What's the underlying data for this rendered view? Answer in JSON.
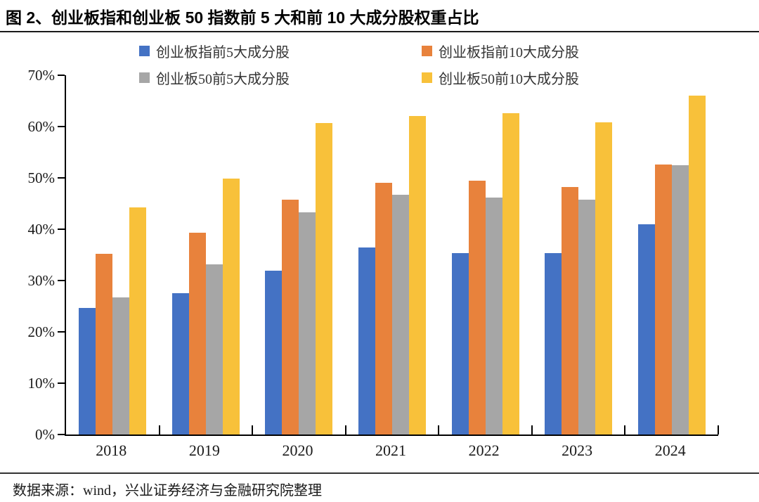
{
  "header": {
    "title": "图 2、创业板指和创业板 50 指数前 5 大和前 10 大成分股权重占比"
  },
  "footer": {
    "source": "数据来源：wind，兴业证券经济与金融研究院整理"
  },
  "chart_data": {
    "type": "bar",
    "title": "图 2、创业板指和创业板 50 指数前 5 大和前 10 大成分股权重占比",
    "categories": [
      "2018",
      "2019",
      "2020",
      "2021",
      "2022",
      "2023",
      "2024"
    ],
    "series": [
      {
        "name": "创业板指前5大成分股",
        "color": "#4472C4",
        "values": [
          24.7,
          27.6,
          31.9,
          36.4,
          35.4,
          35.4,
          40.9
        ]
      },
      {
        "name": "创业板指前10大成分股",
        "color": "#E8823C",
        "values": [
          35.2,
          39.3,
          45.7,
          49.1,
          49.5,
          48.2,
          52.6
        ]
      },
      {
        "name": "创业板50前5大成分股",
        "color": "#A6A6A6",
        "values": [
          26.7,
          33.2,
          43.3,
          46.7,
          46.1,
          45.8,
          52.4
        ]
      },
      {
        "name": "创业板50前10大成分股",
        "color": "#F8C13A",
        "values": [
          44.3,
          49.8,
          60.7,
          62.1,
          62.6,
          60.8,
          66.0
        ]
      }
    ],
    "xlabel": "",
    "ylabel": "",
    "ylim": [
      0,
      70
    ],
    "y_ticks": [
      "0%",
      "10%",
      "20%",
      "30%",
      "40%",
      "50%",
      "60%",
      "70%"
    ],
    "legend_position": "top",
    "grid": false
  }
}
